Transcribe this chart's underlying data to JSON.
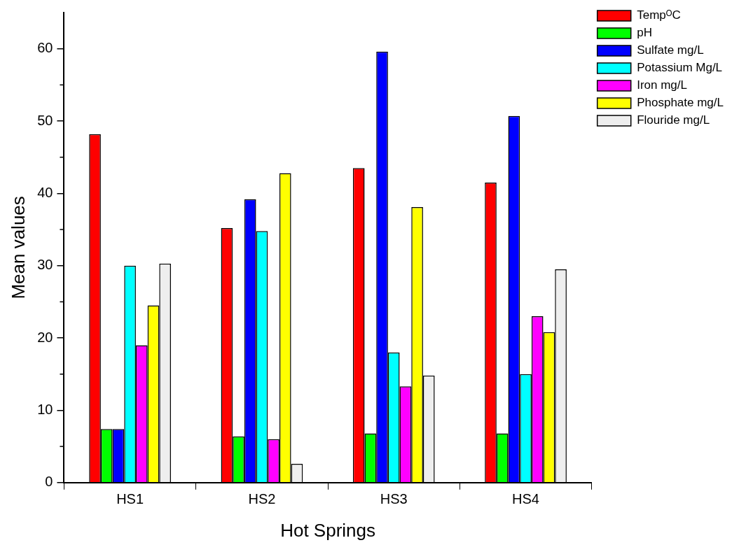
{
  "chart_data": {
    "type": "bar",
    "xlabel": "Hot Springs",
    "ylabel": "Mean values",
    "categories": [
      "HS1",
      "HS2",
      "HS3",
      "HS4"
    ],
    "series": [
      {
        "name": "TempᴼC",
        "color": "#ff0000",
        "values": [
          48.2,
          35.2,
          43.5,
          41.5
        ]
      },
      {
        "name": "pH",
        "color": "#00ff00",
        "values": [
          7.4,
          6.4,
          6.8,
          6.8
        ]
      },
      {
        "name": "Sulfate mg/L",
        "color": "#0000ff",
        "values": [
          7.4,
          39.2,
          59.6,
          50.7
        ]
      },
      {
        "name": "Potassium Mg/L",
        "color": "#00ffff",
        "values": [
          30.0,
          34.8,
          18.0,
          15.0
        ]
      },
      {
        "name": "Iron mg/L",
        "color": "#ff00ff",
        "values": [
          19.0,
          6.0,
          13.3,
          23.0
        ]
      },
      {
        "name": "Phosphate mg/L",
        "color": "#ffff00",
        "values": [
          24.5,
          42.8,
          38.1,
          20.8
        ]
      },
      {
        "name": "Flouride mg/L",
        "color": "#eeeeee",
        "values": [
          30.3,
          2.6,
          14.8,
          29.5
        ]
      }
    ],
    "ylim": [
      0,
      65
    ],
    "yticks": [
      0,
      10,
      20,
      30,
      40,
      50,
      60
    ],
    "grid": false,
    "legend": "top right"
  }
}
